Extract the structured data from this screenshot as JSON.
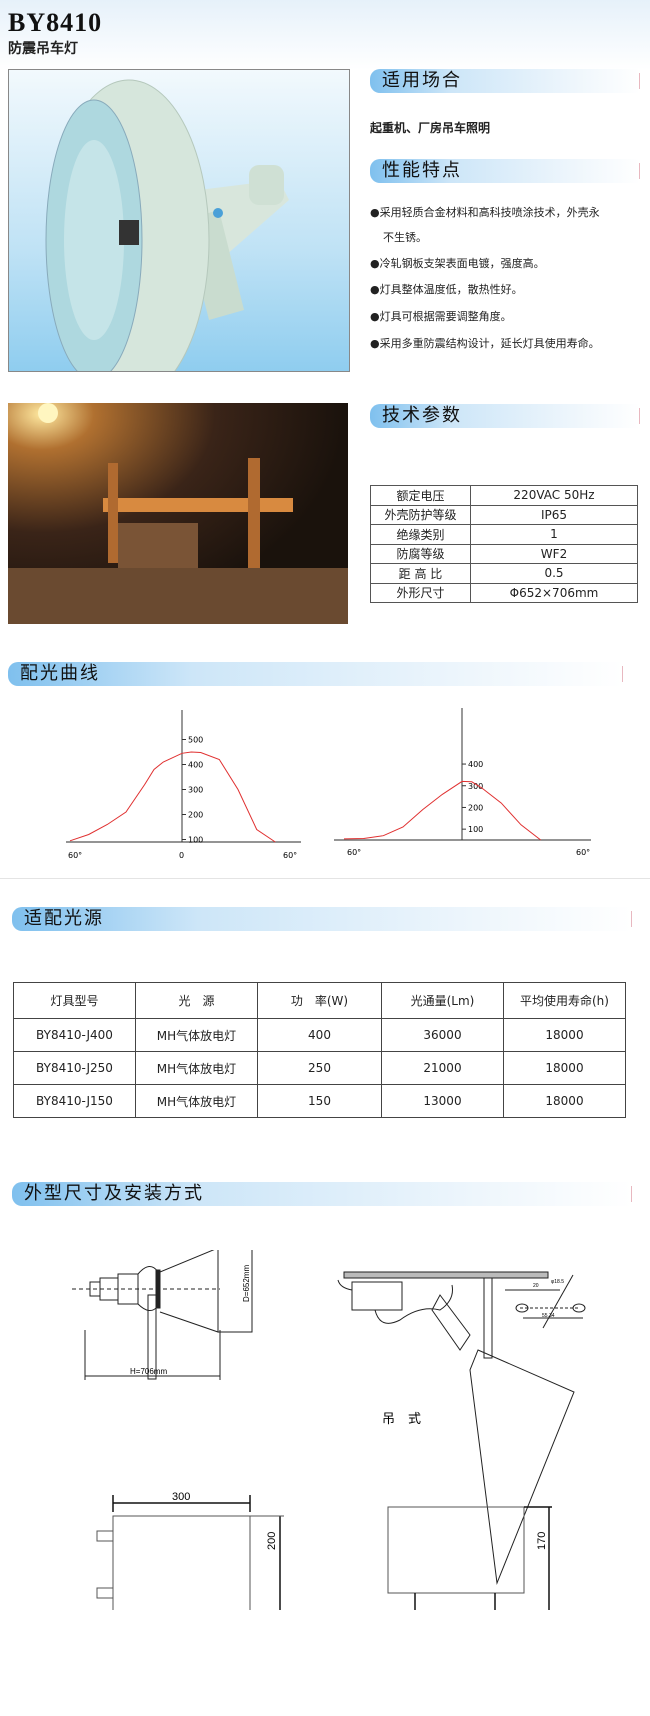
{
  "header": {
    "title": "BY8410",
    "subtitle": "防震吊车灯"
  },
  "sections": {
    "applicable": "适用场合",
    "features": "性能特点",
    "params": "技术参数",
    "curves": "配光曲线",
    "sources": "适配光源",
    "dimensions": "外型尺寸及安装方式"
  },
  "applicable_text": "起重机、厂房吊车照明",
  "features": [
    {
      "line1": "●采用轻质合金材料和高科技喷涂技术，外壳永",
      "line2": "不生锈。"
    },
    {
      "line1": "●冷轧钢板支架表面电镀，强度高。"
    },
    {
      "line1": "●灯具整体温度低，散热性好。"
    },
    {
      "line1": "●灯具可根据需要调整角度。"
    },
    {
      "line1": "●采用多重防震结构设计，延长灯具使用寿命。"
    }
  ],
  "spec_table": [
    {
      "k": "额定电压",
      "v": "220VAC  50Hz"
    },
    {
      "k": "外壳防护等级",
      "v": "IP65"
    },
    {
      "k": "绝缘类别",
      "v": "1"
    },
    {
      "k": "防腐等级",
      "v": "WF2"
    },
    {
      "k": "距 高 比",
      "v": "0.5"
    },
    {
      "k": "外形尺寸",
      "v": "Φ652×706mm"
    }
  ],
  "chart_data": [
    {
      "type": "line",
      "x_ticks": [
        "60°",
        "0",
        "60°"
      ],
      "y_ticks": [
        "500",
        "400",
        "300",
        "200",
        "100"
      ],
      "ylim": [
        100,
        500
      ],
      "grid": false,
      "x": [
        -60,
        -50,
        -40,
        -30,
        -20,
        -15,
        -10,
        0,
        5,
        10,
        20,
        30,
        40,
        50
      ],
      "values": [
        95,
        120,
        160,
        210,
        320,
        380,
        410,
        445,
        450,
        448,
        420,
        300,
        140,
        90
      ],
      "color": "#e03030"
    },
    {
      "type": "line",
      "x_ticks": [
        "60°",
        "60°"
      ],
      "y_ticks": [
        "400",
        "300",
        "200",
        "100"
      ],
      "ylim": [
        50,
        400
      ],
      "grid": false,
      "x": [
        -60,
        -50,
        -40,
        -30,
        -20,
        -10,
        0,
        5,
        10,
        20,
        30,
        40
      ],
      "values": [
        55,
        57,
        70,
        110,
        190,
        260,
        320,
        318,
        290,
        220,
        120,
        50
      ],
      "color": "#e03030"
    }
  ],
  "source_table": {
    "headers": [
      "灯具型号",
      "光　源",
      "功　率(W)",
      "光通量(Lm)",
      "平均使用寿命(h)"
    ],
    "rows": [
      [
        "BY8410-J400",
        "MH气体放电灯",
        "400",
        "36000",
        "18000"
      ],
      [
        "BY8410-J250",
        "MH气体放电灯",
        "250",
        "21000",
        "18000"
      ],
      [
        "BY8410-J150",
        "MH气体放电灯",
        "150",
        "13000",
        "18000"
      ]
    ]
  },
  "drawings": {
    "h_label": "H=706mm",
    "d_label": "D=652mm",
    "mount_label": "吊　式",
    "box1_w": "300",
    "box1_h": "200",
    "box2_h": "170",
    "small1": "20",
    "small2": "φ18.5",
    "small3": "55.34"
  }
}
